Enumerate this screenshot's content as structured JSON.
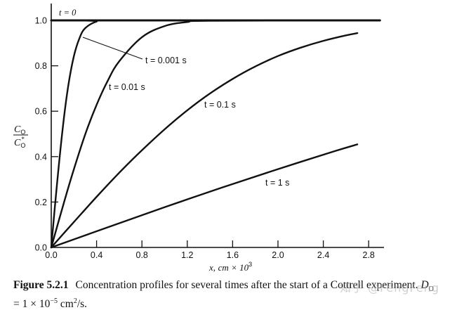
{
  "chart_data": {
    "type": "line",
    "title": "",
    "xlabel": "x, cm × 10^3",
    "ylabel": "C_O / C*_O",
    "xlim": [
      0.0,
      2.9
    ],
    "ylim": [
      0.0,
      1.07
    ],
    "grid": false,
    "legend": "inline curve labels",
    "x_ticks": [
      "0.0",
      "0.4",
      "0.8",
      "1.2",
      "1.6",
      "2.0",
      "2.4",
      "2.8"
    ],
    "y_ticks": [
      "0.0",
      "0.2",
      "0.4",
      "0.6",
      "0.8",
      "1.0"
    ],
    "series": [
      {
        "name": "t = 0",
        "x": [
          0.0,
          2.9
        ],
        "y": [
          1.0,
          1.0
        ]
      },
      {
        "name": "t = 0.001 s",
        "x": [
          0.0,
          0.05,
          0.1,
          0.15,
          0.2,
          0.25,
          0.3,
          0.4,
          0.5,
          2.9
        ],
        "y": [
          0.0,
          0.276,
          0.52,
          0.711,
          0.843,
          0.923,
          0.966,
          0.995,
          1.0,
          1.0
        ]
      },
      {
        "name": "t = 0.01 s",
        "x": [
          0.0,
          0.1,
          0.2,
          0.3,
          0.4,
          0.5,
          0.6,
          0.8,
          1.0,
          1.2,
          1.4,
          2.9
        ],
        "y": [
          0.0,
          0.177,
          0.345,
          0.498,
          0.628,
          0.736,
          0.82,
          0.926,
          0.975,
          0.993,
          0.998,
          1.0
        ]
      },
      {
        "name": "t = 0.1 s",
        "x": [
          0.0,
          0.2,
          0.4,
          0.6,
          0.8,
          1.0,
          1.2,
          1.4,
          1.6,
          1.8,
          2.0,
          2.2,
          2.4,
          2.6,
          2.7
        ],
        "y": [
          0.0,
          0.112,
          0.223,
          0.329,
          0.428,
          0.52,
          0.604,
          0.678,
          0.742,
          0.797,
          0.843,
          0.88,
          0.91,
          0.934,
          0.944
        ]
      },
      {
        "name": "t = 1 s",
        "x": [
          0.0,
          0.5,
          1.0,
          1.5,
          2.0,
          2.5,
          2.7
        ],
        "y": [
          0.0,
          0.089,
          0.177,
          0.263,
          0.345,
          0.424,
          0.454
        ]
      }
    ],
    "annotations": [
      {
        "text": "t = 0",
        "x": 0.06,
        "y": 1.03
      },
      {
        "text": "t = 0.001 s",
        "x": 0.84,
        "y": 0.83,
        "leader_to": [
          0.28,
          0.93
        ]
      },
      {
        "text": "t = 0.01 s",
        "x": 0.52,
        "y": 0.71
      },
      {
        "text": "t = 0.1 s",
        "x": 1.36,
        "y": 0.63
      },
      {
        "text": "t = 1 s",
        "x": 1.9,
        "y": 0.29
      }
    ]
  },
  "axes": {
    "x_label_var": "x,",
    "x_label_unit": "cm × 10",
    "x_label_exp": "3",
    "y_label_num": "C",
    "y_label_den": "C",
    "y_label_sub": "O",
    "y_label_star": "*"
  },
  "labels": {
    "t0": "t = 0",
    "t0001": "t = 0.001 s",
    "t001": "t = 0.01 s",
    "t01": "t = 0.1 s",
    "t1": "t = 1 s"
  },
  "caption": {
    "figure_number": "Figure 5.2.1",
    "text_line1": "Concentration profiles for several times after the start of a Cottrell experiment.",
    "D_symbol": "D",
    "D_sub": "O",
    "text_line2_prefix": "= 1 × 10",
    "text_line2_exp": "−5",
    "text_line2_unit": " cm",
    "text_line2_unit_exp": "2",
    "text_line2_suffix": "/s."
  },
  "watermark": "知乎 @FengFeng"
}
